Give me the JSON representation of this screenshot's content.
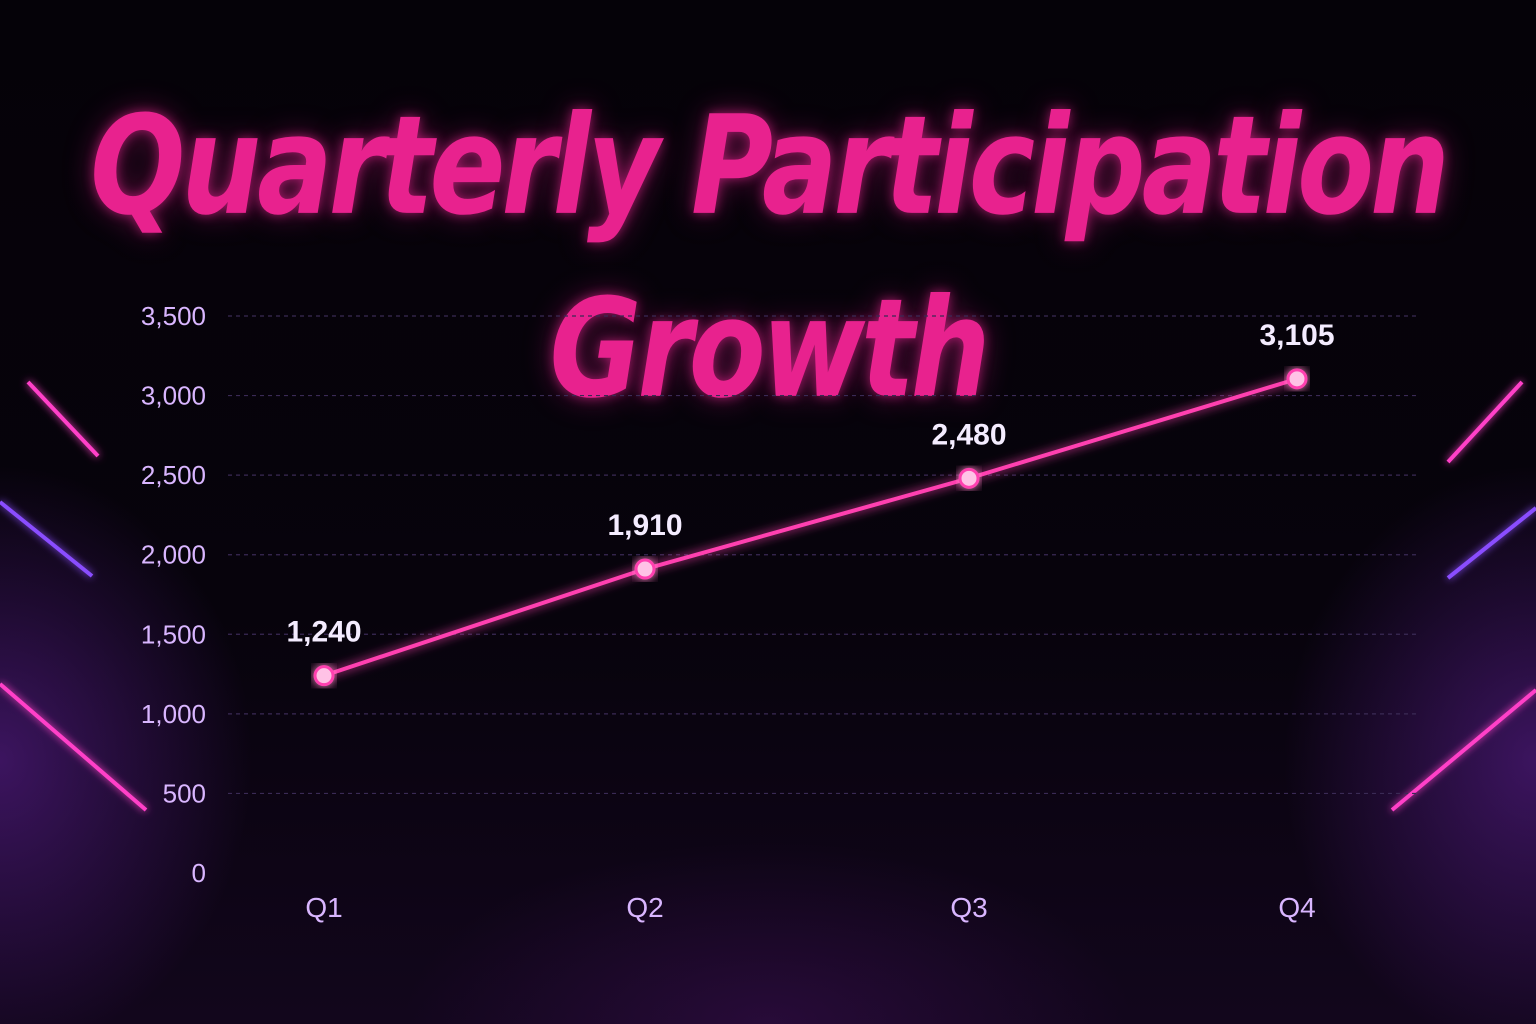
{
  "chart_data": {
    "type": "line",
    "title": "Quarterly Participation Growth",
    "categories": [
      "Q1",
      "Q2",
      "Q3",
      "Q4"
    ],
    "series": [
      {
        "values": [
          1240,
          1910,
          2480,
          3105
        ]
      }
    ],
    "data_labels": [
      "1,240",
      "1,910",
      "2,480",
      "3,105"
    ],
    "ylim": [
      0,
      3500
    ],
    "yticks": [
      0,
      500,
      1000,
      1500,
      2000,
      2500,
      3000,
      3500
    ],
    "ytick_labels": [
      "0",
      "500",
      "1,000",
      "1,500",
      "2,000",
      "2,500",
      "3,000",
      "3,500"
    ],
    "xlabel": "",
    "ylabel": "",
    "grid": true,
    "legend": "none",
    "colors": {
      "line": "#ff3fb0",
      "marker": "#ffc2e6",
      "axis": "#ff5cc4",
      "grid": "#3a2a55",
      "title": "#e8228e",
      "tick_text": "#d9b6ff",
      "label_text": "#f4ecff",
      "neon_pink": "#ff3fc8",
      "neon_violet": "#8a4dff"
    }
  }
}
